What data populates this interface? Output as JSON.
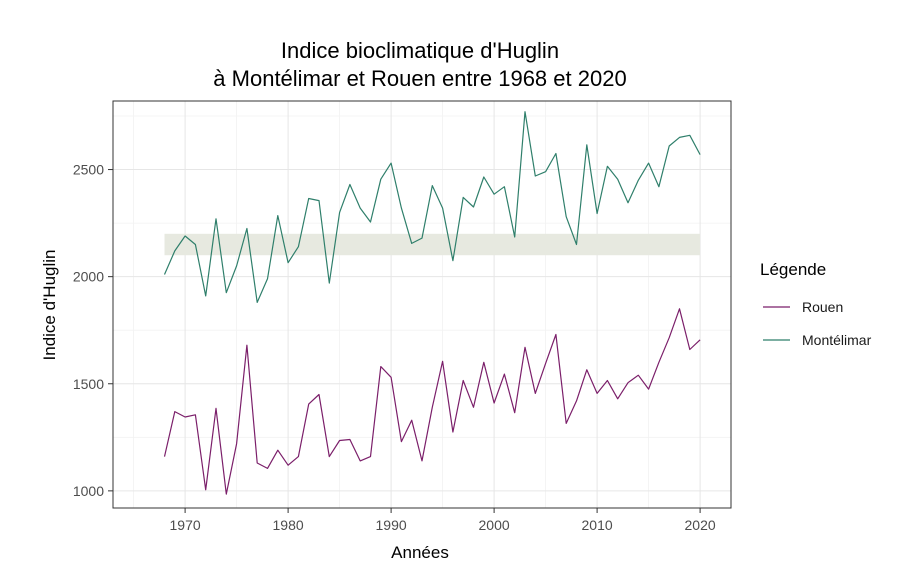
{
  "chart_data": {
    "type": "line",
    "title_line1": "Indice bioclimatique d'Huglin",
    "title_line2": "à Montélimar et Rouen entre 1968 et 2020",
    "xlabel": "Années",
    "ylabel": "Indice d'Huglin",
    "xlim": [
      1963,
      2023
    ],
    "ylim": [
      920,
      2820
    ],
    "x_ticks": [
      1970,
      1980,
      1990,
      2000,
      2010,
      2020
    ],
    "y_ticks": [
      1000,
      1500,
      2000,
      2500
    ],
    "grid": true,
    "legend_title": "Légende",
    "legend_position": "right",
    "band": {
      "x_range": [
        1968,
        2020
      ],
      "y_range": [
        2100,
        2200
      ],
      "color": "#e7e9e0"
    },
    "x": [
      1968,
      1969,
      1970,
      1971,
      1972,
      1973,
      1974,
      1975,
      1976,
      1977,
      1978,
      1979,
      1980,
      1981,
      1982,
      1983,
      1984,
      1985,
      1986,
      1987,
      1988,
      1989,
      1990,
      1991,
      1992,
      1993,
      1994,
      1995,
      1996,
      1997,
      1998,
      1999,
      2000,
      2001,
      2002,
      2003,
      2004,
      2005,
      2006,
      2007,
      2008,
      2009,
      2010,
      2011,
      2012,
      2013,
      2014,
      2015,
      2016,
      2017,
      2018,
      2019,
      2020
    ],
    "series": [
      {
        "name": "Rouen",
        "color": "#7b1f6a",
        "values": [
          1160,
          1370,
          1345,
          1355,
          1005,
          1385,
          985,
          1220,
          1680,
          1130,
          1105,
          1190,
          1120,
          1160,
          1405,
          1450,
          1160,
          1235,
          1240,
          1140,
          1160,
          1580,
          1530,
          1230,
          1330,
          1140,
          1390,
          1605,
          1275,
          1515,
          1390,
          1600,
          1410,
          1545,
          1365,
          1670,
          1455,
          1595,
          1730,
          1315,
          1420,
          1565,
          1455,
          1515,
          1430,
          1505,
          1540,
          1475,
          1600,
          1715,
          1850,
          1660,
          1705
        ]
      },
      {
        "name": "Montélimar",
        "color": "#2f7f6b",
        "values": [
          2010,
          2120,
          2190,
          2150,
          1910,
          2270,
          1925,
          2050,
          2225,
          1880,
          1990,
          2285,
          2065,
          2140,
          2365,
          2355,
          1970,
          2300,
          2430,
          2320,
          2255,
          2455,
          2530,
          2320,
          2155,
          2180,
          2425,
          2320,
          2075,
          2370,
          2325,
          2465,
          2385,
          2420,
          2185,
          2770,
          2470,
          2490,
          2575,
          2280,
          2150,
          2615,
          2295,
          2515,
          2455,
          2345,
          2450,
          2530,
          2420,
          2610,
          2650,
          2660,
          2570
        ]
      }
    ]
  }
}
